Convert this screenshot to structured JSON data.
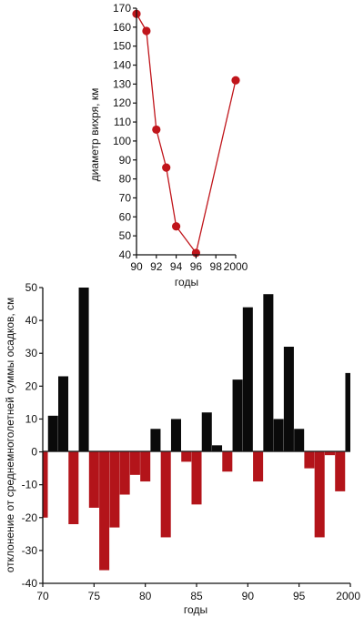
{
  "chart_data": [
    {
      "type": "line",
      "title": "",
      "xlabel": "годы",
      "ylabel": "диаметр вихря, км",
      "xlim": [
        1990,
        2000
      ],
      "ylim": [
        40,
        170
      ],
      "x_ticks": [
        "90",
        "92",
        "94",
        "96",
        "98",
        "2000"
      ],
      "y_ticks": [
        "40",
        "50",
        "60",
        "70",
        "80",
        "90",
        "100",
        "110",
        "120",
        "130",
        "140",
        "150",
        "160",
        "170"
      ],
      "series": [
        {
          "x": [
            1990,
            1991,
            1992,
            1993,
            1994,
            1996,
            2000
          ],
          "y": [
            167,
            158,
            106,
            86,
            55,
            41,
            132
          ]
        }
      ],
      "colors": {
        "line": "#c0151b",
        "marker": "#c0151b"
      },
      "grid": false
    },
    {
      "type": "bar",
      "title": "",
      "xlabel": "годы",
      "ylabel": "отклонение от среднемноголетней суммы осадков, см",
      "xlim": [
        1970,
        2000
      ],
      "ylim": [
        -40,
        50
      ],
      "x_ticks": [
        "70",
        "75",
        "80",
        "85",
        "90",
        "95",
        "2000"
      ],
      "y_ticks": [
        "-40",
        "-30",
        "-20",
        "-10",
        "0",
        "10",
        "20",
        "30",
        "40",
        "50"
      ],
      "x": [
        1970,
        1971,
        1972,
        1973,
        1974,
        1975,
        1976,
        1977,
        1978,
        1979,
        1980,
        1981,
        1982,
        1983,
        1984,
        1985,
        1986,
        1987,
        1988,
        1989,
        1990,
        1991,
        1992,
        1993,
        1994,
        1995,
        1996,
        1997,
        1998,
        1999,
        2000
      ],
      "values": [
        -20,
        11,
        23,
        -22,
        50,
        -17,
        -36,
        -23,
        -13,
        -7,
        -9,
        7,
        -26,
        10,
        -3,
        -16,
        12,
        2,
        -6,
        22,
        44,
        -9,
        48,
        10,
        32,
        7,
        -5,
        -26,
        -1,
        -12,
        24
      ],
      "colors": {
        "positive": "#0a0a0a",
        "negative": "#b3141a"
      },
      "grid": false
    }
  ]
}
